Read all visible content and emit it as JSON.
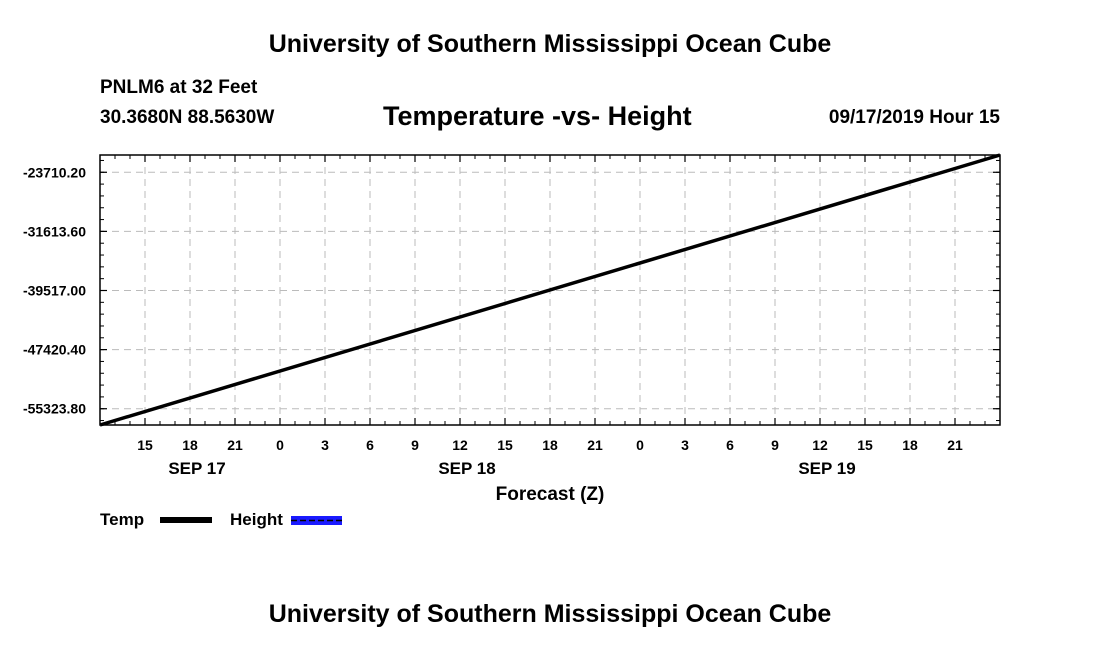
{
  "header": {
    "top_title": "University of Southern Mississippi Ocean Cube",
    "station": "PNLM6 at 32 Feet",
    "coordinates": "30.3680N 88.5630W",
    "datetime": "09/17/2019 Hour 15"
  },
  "footer": {
    "bottom_title": "University of Southern Mississippi Ocean Cube"
  },
  "legend": {
    "temp_label": "Temp",
    "height_label": "Height",
    "temp_color": "#000000",
    "height_color": "#1a1aff"
  },
  "chart_data": {
    "type": "line",
    "title": "Temperature -vs- Height",
    "xlabel": "Forecast (Z)",
    "ylabel": "",
    "x_range_hours": [
      12,
      72
    ],
    "ylim": [
      -57500,
      -21400
    ],
    "y_ticks": [
      -55323.8,
      -47420.4,
      -39517.0,
      -31613.6,
      -23710.2
    ],
    "y_tick_labels": [
      "-55323.80",
      "-47420.40",
      "-39517.00",
      "-31613.60",
      "-23710.20"
    ],
    "x_ticks_hours": [
      15,
      18,
      21,
      24,
      27,
      30,
      33,
      36,
      39,
      42,
      45,
      48,
      51,
      54,
      57,
      60,
      63,
      66,
      69
    ],
    "x_tick_labels": [
      "15",
      "18",
      "21",
      "0",
      "3",
      "6",
      "9",
      "12",
      "15",
      "18",
      "21",
      "0",
      "3",
      "6",
      "9",
      "12",
      "15",
      "18",
      "21"
    ],
    "date_labels": [
      {
        "label": "SEP 17",
        "hour": 18
      },
      {
        "label": "SEP 18",
        "hour": 36
      },
      {
        "label": "SEP 19",
        "hour": 60
      }
    ],
    "grid": true,
    "series": [
      {
        "name": "Temp",
        "style": "solid",
        "color": "#000000",
        "x": [
          12,
          72
        ],
        "y": [
          -57500,
          -21400
        ]
      },
      {
        "name": "Height",
        "style": "dashed",
        "color": "#1a1aff",
        "x": [
          12,
          72
        ],
        "y": [
          -57500,
          -21400
        ]
      }
    ]
  }
}
